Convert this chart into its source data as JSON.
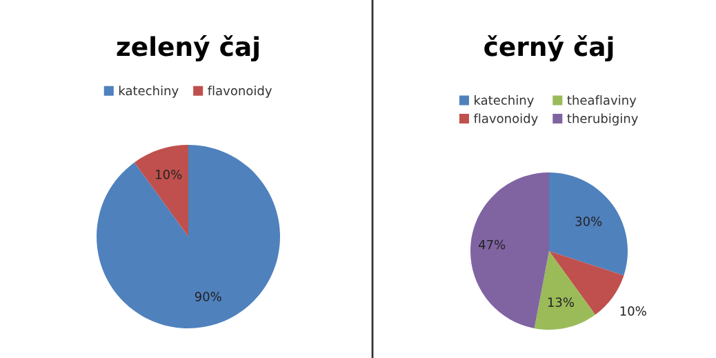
{
  "chart_data": [
    {
      "type": "pie",
      "title": "zelený čaj",
      "categories": [
        "katechiny",
        "flavonoidy"
      ],
      "values": [
        90,
        10
      ],
      "colors": [
        "#4f81bd",
        "#c0504d"
      ],
      "value_labels": [
        "90%",
        "10%"
      ],
      "legend": "top"
    },
    {
      "type": "pie",
      "title": "černý čaj",
      "categories": [
        "katechiny",
        "flavonoidy",
        "theaflaviny",
        "therubiginy"
      ],
      "values": [
        30,
        10,
        13,
        47
      ],
      "colors": [
        "#4f81bd",
        "#c0504d",
        "#9bbb59",
        "#8064a2"
      ],
      "value_labels": [
        "30%",
        "10%",
        "13%",
        "47%"
      ],
      "legend": "top"
    }
  ]
}
